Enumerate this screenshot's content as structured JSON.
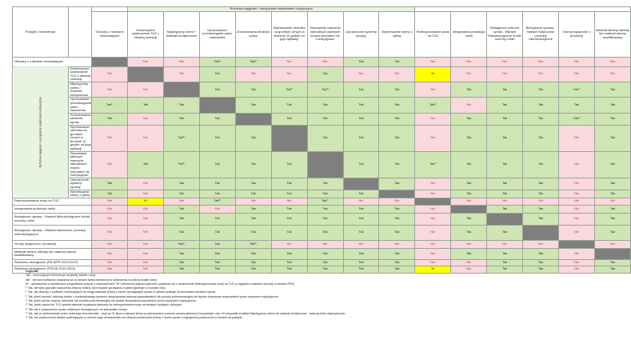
{
  "document": {
    "group_header": "Rolnictwo węglowe i zarządzanie składnikami odżywczymi",
    "corner_label": "Praktyki / Interwencje",
    "side_label": "Rolnictwo węglowe i zarządzanie składnikami odżywczymi",
    "columns": [
      "Obszary z roślinami miododajnymi",
      "Ekstensywne użytkowanie TUZ z obsadą zwierząt",
      "Międzyplony ozime / Wsiewki śródplonowe",
      "Opracowanie i przestrzeganie planu nawożenia",
      "Zróżnicowana struktura upraw",
      "Wymieszanie obornika na gruntach ornych w terminie 12 godzin od jego aplikacji",
      "Stosowanie nawozów naturalnych płynnych innymi metodami niż rozbryzgowo",
      "Uproszczone systemy uprawy",
      "Wymieszanie słomy z glebą",
      "Retencjonowanie wody na TUZ",
      "Integrowana produkcja roślin",
      "Biologiczna ochrona upraw - Wariant Mikrobiologiczne środki ochrony roślin",
      "Biologiczne uprawy - Wariant Nawozowe produkty mikrobiologiczne",
      "Grunty wyłączone z produkcji",
      "Materiał siewny siłbinity lub materiał siewny kwalifikowany"
    ],
    "rows": [
      {
        "label": "Obszary z roślinami miododajnymi",
        "cells": [
          "X",
          "Nie",
          "Nie",
          "Tak¹⁾",
          "Tak¹⁾",
          "Nie",
          "Nie",
          "Tak",
          "Tak",
          "Nie",
          "Nie",
          "Nie",
          "Nie",
          "Nie",
          "Nie"
        ]
      },
      {
        "label": "Ekstensywne użytkowanie TUZ z obsadą zwierząt",
        "cells": [
          "Nie",
          "X",
          "Nie",
          "Tak",
          "Nie",
          "Nie",
          "Tak",
          "Nie",
          "Nie",
          "W",
          "Nie",
          "Nie",
          "Nie",
          "Nie",
          "Nie"
        ]
      },
      {
        "label": "Międzyplony ozime / Wsiewki śródplonowe",
        "cells": [
          "Nie",
          "Nie",
          "X",
          "Tak",
          "Tak",
          "Tak²⁾",
          "Tak³⁾",
          "Tak",
          "Tak",
          "Nie",
          "Tak",
          "Tak",
          "Tak",
          "Tak⁴⁾",
          "Tak"
        ]
      },
      {
        "label": "Opracowanie i przestrzeganie planu nawożenia",
        "cells": [
          "Tak¹⁾",
          "Tak",
          "Tak",
          "X",
          "Tak",
          "Tak",
          "Tak",
          "Tak",
          "Tak",
          "Tak⁵⁾",
          "Nie",
          "Tak",
          "Tak",
          "Tak",
          "Tak"
        ]
      },
      {
        "label": "Zróżnicowana struktura upraw",
        "cells": [
          "Tak",
          "Nie",
          "Tak",
          "Tak",
          "X",
          "Tak",
          "Tak",
          "Tak",
          "Tak",
          "Nie",
          "Tak",
          "Tak",
          "Tak",
          "Tak⁶⁾",
          "Tak"
        ]
      },
      {
        "label": "Wymieszanie obornika na gruntach ornych w terminie 12 godzin od jego aplikacji",
        "cells": [
          "Nie",
          "Nie",
          "Tak²⁾",
          "Tak",
          "Tak",
          "X",
          "Tak",
          "Tak",
          "Tak",
          "Nie",
          "Tak",
          "Tak",
          "Tak",
          "Nie",
          "Tak"
        ]
      },
      {
        "label": "Stosowanie płynnych nawozów naturalnych innymi metodami niż rozbryzgowo",
        "cells": [
          "Nie",
          "Tak",
          "Tak³⁾",
          "Tak",
          "Tak",
          "Tak",
          "X",
          "Tak",
          "Tak",
          "Tak⁷⁾",
          "Tak",
          "Tak",
          "Tak",
          "Nie",
          "Tak"
        ]
      },
      {
        "label": "Uproszczone systemy uprawy",
        "cells": [
          "Tak",
          "Nie",
          "Tak",
          "Tak",
          "Tak",
          "Tak",
          "Tak",
          "X",
          "Tak",
          "Nie",
          "Tak",
          "Tak",
          "Tak",
          "Nie",
          "Tak"
        ]
      },
      {
        "label": "Wymieszanie słomy z glebą",
        "cells": [
          "Tak",
          "Nie",
          "Tak",
          "Tak",
          "Tak",
          "Tak",
          "Tak",
          "Tak",
          "X",
          "Nie",
          "Tak",
          "Tak",
          "Tak",
          "Nie",
          "Tak"
        ]
      },
      {
        "label": "Retencjonowanie wody na TUZ",
        "cells": [
          "Nie",
          "W",
          "Nie",
          "Tak⁵⁾",
          "Nie",
          "Nie",
          "Tak⁷⁾",
          "Nie",
          "Nie",
          "X",
          "Nie",
          "Nie",
          "Nie",
          "Nie",
          "Nie"
        ]
      },
      {
        "label": "Integrowana produkcja roślin",
        "cells": [
          "Nie",
          "Nie",
          "Tak",
          "Nie",
          "Tak",
          "Tak",
          "Tak",
          "Tak",
          "Tak",
          "Nie",
          "X",
          "Tak",
          "Tak",
          "Nie",
          "Tak"
        ]
      },
      {
        "label": "Biologiczne uprawy - Wariant Mikrobiologiczne środki ochrony roślin",
        "cells": [
          "Nie",
          "Nie",
          "Tak",
          "Tak",
          "Tak",
          "Tak",
          "Tak",
          "Tak",
          "Tak",
          "Nie",
          "Tak",
          "X",
          "Tak",
          "Nie",
          "Tak"
        ]
      },
      {
        "label": "Biologiczne uprawy - Wariant Nawozowe produkty mikrobiologiczne",
        "cells": [
          "Nie",
          "Nie",
          "Tak",
          "Tak",
          "Tak",
          "Tak",
          "Tak",
          "Tak",
          "Tak",
          "Nie",
          "Tak",
          "Tak",
          "X",
          "Nie",
          "Tak"
        ]
      },
      {
        "label": "Grunty wyłączone z produkcji",
        "cells": [
          "Nie",
          "Nie",
          "Tak⁴⁾",
          "Tak",
          "Tak⁶⁾",
          "Nie",
          "Nie",
          "Nie",
          "Nie",
          "Nie",
          "Nie",
          "Nie",
          "Nie",
          "X",
          "Nie"
        ]
      },
      {
        "label": "Materiał siewny siłbinity lub materiał siewny kwalifikowany",
        "cells": [
          "Nie",
          "Nie",
          "Tak",
          "Tak",
          "Tak",
          "Tak",
          "Tak",
          "Tak",
          "Tak",
          "Nie",
          "Tak",
          "Tak",
          "Tak",
          "Nie",
          "X"
        ]
      },
      {
        "label": "Rolnictwo ekologiczne (PS WPR 2023-2027)",
        "cells": [
          "Nie",
          "Nie",
          "Tak",
          "Tak",
          "Tak",
          "Tak",
          "Tak",
          "Tak",
          "Tak",
          "Nie",
          "Nie",
          "Tak",
          "Tak",
          "Nie",
          "Tak"
        ]
      },
      {
        "label": "Rolnictwo ekologiczne (PROW 2014-2020)",
        "cells": [
          "Nie",
          "Nie",
          "Tak",
          "Tak",
          "Tak",
          "Tak",
          "Tak",
          "Tak",
          "Tak",
          "W",
          "Nie",
          "Tak",
          "Tak",
          "Nie",
          "Tak"
        ]
      }
    ],
    "legend": [
      "Legenda:",
      "Tak - można łączyć interwencje na jednej działce rolnej",
      "Nie - nie ma możliwości uzyskania ich w ramach danej interwencji w odniesieniu do jednej działki rolnej",
      "W - uzasadnione w określonych przypadkach jedynie z zastrzeżeniem \"W\" interwencji stanowi warunek uzyskania się o ekoschemat Retencjonowanie wody na TUZ (z wyjątkiem wariantu Murawy w ramach RŚK)",
      "¹⁾ Tak, ale tylko gdy plan nawożenia dotyczy rośliny, która będzie uprawiana w planie głównym w korzyści roku.",
      "²⁾ Tak, ale obszary z roślinami miododajnymi nie mogą stanowić jednej z trzech wymaganych upraw w ramach praktyki Zróżnicowana struktura upraw.",
      "³⁾ Tak, jeżeli obornik, odchody drobiu z bezściółkowego systemu utrzymywania zwierząt gospodarskich lub produkt pofermentacyjny nie będzie stosowany bezpośrednio przed wysiewem międzyplonu.",
      "⁴⁾ Tak, jeżeli płynne nawozy naturalne lub produkt pofermentacyjny nie będzie stosowany bezpośrednio przed wysiewem międzyplonu.",
      "⁵⁾ Tak, jeżeli nawóz lub TUZ spełnia warunek uzyskania płatności do retencjonowania wody na trwałych użytkach zielonych.",
      "⁶⁾ Tak, ale z wyłączeniem upraw roślinnych ekologicznych na stanowisku rolnym.",
      "⁷⁾ Tak, ale po zastosowaniu przez realizację ekoschematu - czyli po 31 lipca w sytuacji kiedy są wykonywane podczas uprawy głównej w korzystnym roku. W przypadku praktyki Międzyplony ozime lub wsiewki śródplonowe - dotyczy tylko międzyplonów.",
      "⁸⁾ Tak, ale powierzchnia działek spełniających w ramach tego ekoschematu nie stanowi powierzchni jednej z trzech upraw o największej powierzchni w ramach tej praktyki."
    ]
  }
}
